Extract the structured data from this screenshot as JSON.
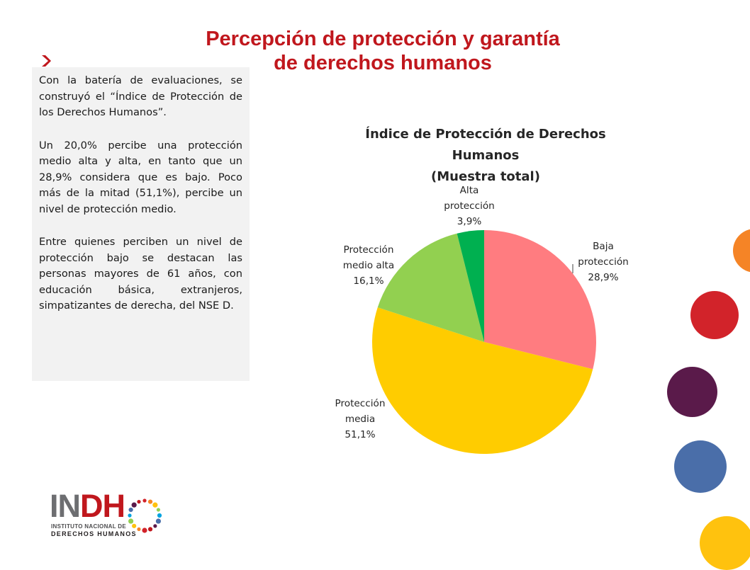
{
  "slide": {
    "title_line1": "Percepción de protección y garantía",
    "title_line2": "de derechos humanos"
  },
  "text_box": {
    "paragraph1": "Con la batería de evaluaciones, se construyó el “Índice de Protección de los Derechos Humanos”.",
    "paragraph2": "Un 20,0% percibe una protección medio alta y alta, en tanto que un 28,9% considera que es bajo. Poco más de la mitad (51,1%), percibe un nivel de protección medio.",
    "paragraph3": "Entre quienes perciben un nivel de protección bajo se destacan las personas mayores de 61 años, con educación básica, extranjeros, simpatizantes de derecha, del NSE D."
  },
  "chart_data": {
    "type": "pie",
    "title_line1": "Índice de Protección de Derechos Humanos",
    "title_line2": "(Muestra total)",
    "categories": [
      "Baja protección",
      "Protección media",
      "Protección medio alta",
      "Alta protección"
    ],
    "values": [
      28.9,
      51.1,
      16.1,
      3.9
    ],
    "colors": [
      "#ff7c80",
      "#ffcc00",
      "#92d050",
      "#00b050"
    ],
    "labels": [
      {
        "line1": "Baja",
        "line2": "protección",
        "value": "28,9%"
      },
      {
        "line1": "Protección",
        "line2": "media",
        "value": "51,1%"
      },
      {
        "line1": "Protección",
        "line2": "medio alta",
        "value": "16,1%"
      },
      {
        "line1": "Alta",
        "line2": "protección",
        "value": "3,9%"
      }
    ],
    "legend": "none"
  },
  "logo": {
    "text_gray": "IN",
    "text_red": "DH",
    "sub_line1": "INSTITUTO NACIONAL DE",
    "sub_line2": "DERECHOS HUMANOS"
  },
  "decor_colors": {
    "orange": "#f58426",
    "red": "#d2232a",
    "purple": "#5a1a4a",
    "blue": "#4a6ea9",
    "yellow": "#ffc20e",
    "title_red": "#c0171d"
  }
}
